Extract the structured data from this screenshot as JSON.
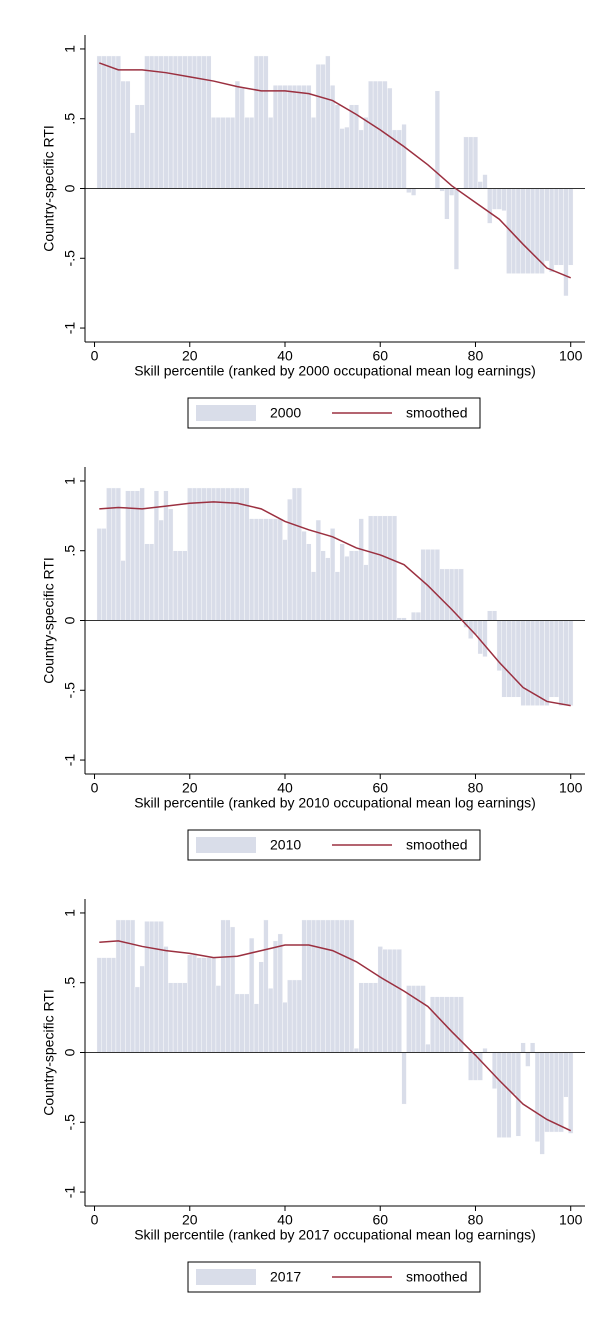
{
  "chart_data": [
    {
      "type": "bar",
      "y_label": "Country-specific RTI",
      "x_label": "Skill percentile (ranked by 2000 occupational mean log earnings)",
      "xlim": [
        -2,
        103
      ],
      "xticks": [
        0,
        20,
        40,
        60,
        80,
        100
      ],
      "ylim": [
        -1.1,
        1.1
      ],
      "yticks": [
        -1,
        {
          "value": -0.5,
          "label": "-.5"
        },
        0,
        {
          "value": 0.5,
          "label": ".5"
        },
        1
      ],
      "grid": false,
      "legend": "bottom",
      "series": [
        {
          "name": "2000",
          "type": "bar",
          "color": "#d9dde9",
          "x": [
            1,
            2,
            3,
            4,
            5,
            6,
            7,
            8,
            9,
            10,
            11,
            12,
            13,
            14,
            15,
            16,
            17,
            18,
            19,
            20,
            21,
            22,
            23,
            24,
            25,
            26,
            27,
            28,
            29,
            30,
            31,
            32,
            33,
            34,
            35,
            36,
            37,
            38,
            39,
            40,
            41,
            42,
            43,
            44,
            45,
            46,
            47,
            48,
            49,
            50,
            51,
            52,
            53,
            54,
            55,
            56,
            57,
            58,
            59,
            60,
            61,
            62,
            63,
            64,
            65,
            66,
            67,
            68,
            69,
            70,
            71,
            72,
            73,
            74,
            75,
            76,
            77,
            78,
            79,
            80,
            81,
            82,
            83,
            84,
            85,
            86,
            87,
            88,
            89,
            90,
            91,
            92,
            93,
            94,
            95,
            96,
            97,
            98,
            99,
            100
          ],
          "values": [
            0.95,
            0.95,
            0.95,
            0.95,
            0.95,
            0.77,
            0.77,
            0.4,
            0.6,
            0.6,
            0.95,
            0.95,
            0.95,
            0.95,
            0.95,
            0.95,
            0.95,
            0.95,
            0.95,
            0.95,
            0.95,
            0.95,
            0.95,
            0.95,
            0.51,
            0.51,
            0.51,
            0.51,
            0.51,
            0.77,
            0.72,
            0.51,
            0.51,
            0.95,
            0.95,
            0.95,
            0.51,
            0.74,
            0.74,
            0.74,
            0.74,
            0.74,
            0.74,
            0.74,
            0.74,
            0.51,
            0.89,
            0.89,
            0.95,
            0.74,
            0.6,
            0.43,
            0.44,
            0.6,
            0.6,
            0.42,
            0.51,
            0.77,
            0.77,
            0.77,
            0.77,
            0.72,
            0.42,
            0.42,
            0.46,
            -0.03,
            -0.05,
            0,
            0,
            0,
            0,
            0.7,
            -0.02,
            -0.22,
            -0.05,
            -0.58,
            0,
            0.37,
            0.37,
            0.37,
            0.05,
            0.1,
            -0.25,
            -0.15,
            -0.15,
            -0.16,
            -0.61,
            -0.61,
            -0.61,
            -0.61,
            -0.61,
            -0.61,
            -0.61,
            -0.61,
            -0.52,
            -0.6,
            -0.55,
            -0.55,
            -0.77,
            -0.55
          ]
        },
        {
          "name": "smoothed",
          "type": "line",
          "color": "#9b3040",
          "x": [
            1,
            5,
            10,
            15,
            20,
            25,
            30,
            35,
            40,
            45,
            50,
            55,
            60,
            65,
            70,
            75,
            80,
            85,
            90,
            95,
            100
          ],
          "values": [
            0.9,
            0.85,
            0.85,
            0.83,
            0.8,
            0.77,
            0.73,
            0.7,
            0.7,
            0.68,
            0.63,
            0.53,
            0.42,
            0.3,
            0.17,
            0.02,
            -0.1,
            -0.22,
            -0.4,
            -0.57,
            -0.64
          ]
        }
      ]
    },
    {
      "type": "bar",
      "y_label": "Country-specific RTI",
      "x_label": "Skill percentile (ranked by 2010 occupational mean log earnings)",
      "xlim": [
        -2,
        103
      ],
      "xticks": [
        0,
        20,
        40,
        60,
        80,
        100
      ],
      "ylim": [
        -1.1,
        1.1
      ],
      "yticks": [
        -1,
        {
          "value": -0.5,
          "label": "-.5"
        },
        0,
        {
          "value": 0.5,
          "label": ".5"
        },
        1
      ],
      "grid": false,
      "legend": "bottom",
      "series": [
        {
          "name": "2010",
          "type": "bar",
          "color": "#d9dde9",
          "x": [
            1,
            2,
            3,
            4,
            5,
            6,
            7,
            8,
            9,
            10,
            11,
            12,
            13,
            14,
            15,
            16,
            17,
            18,
            19,
            20,
            21,
            22,
            23,
            24,
            25,
            26,
            27,
            28,
            29,
            30,
            31,
            32,
            33,
            34,
            35,
            36,
            37,
            38,
            39,
            40,
            41,
            42,
            43,
            44,
            45,
            46,
            47,
            48,
            49,
            50,
            51,
            52,
            53,
            54,
            55,
            56,
            57,
            58,
            59,
            60,
            61,
            62,
            63,
            64,
            65,
            66,
            67,
            68,
            69,
            70,
            71,
            72,
            73,
            74,
            75,
            76,
            77,
            78,
            79,
            80,
            81,
            82,
            83,
            84,
            85,
            86,
            87,
            88,
            89,
            90,
            91,
            92,
            93,
            94,
            95,
            96,
            97,
            98,
            99,
            100
          ],
          "values": [
            0.66,
            0.66,
            0.95,
            0.95,
            0.95,
            0.43,
            0.93,
            0.93,
            0.93,
            0.95,
            0.55,
            0.55,
            0.93,
            0.72,
            0.93,
            0.8,
            0.5,
            0.5,
            0.5,
            0.95,
            0.95,
            0.95,
            0.95,
            0.95,
            0.95,
            0.95,
            0.95,
            0.95,
            0.95,
            0.95,
            0.95,
            0.95,
            0.73,
            0.73,
            0.73,
            0.73,
            0.73,
            0.73,
            0.73,
            0.58,
            0.87,
            0.95,
            0.95,
            0.64,
            0.55,
            0.35,
            0.72,
            0.5,
            0.45,
            0.66,
            0.35,
            0.55,
            0.46,
            0.5,
            0.5,
            0.73,
            0.4,
            0.75,
            0.75,
            0.75,
            0.75,
            0.75,
            0.75,
            0.02,
            0.02,
            0,
            0.06,
            0.06,
            0.51,
            0.51,
            0.51,
            0.51,
            0.37,
            0.37,
            0.37,
            0.37,
            0.37,
            -0.05,
            -0.13,
            -0.1,
            -0.24,
            -0.26,
            0.07,
            0.07,
            -0.36,
            -0.55,
            -0.55,
            -0.55,
            -0.55,
            -0.61,
            -0.61,
            -0.61,
            -0.61,
            -0.61,
            -0.61,
            -0.55,
            -0.55,
            -0.61,
            -0.61,
            -0.61
          ]
        },
        {
          "name": "smoothed",
          "type": "line",
          "color": "#9b3040",
          "x": [
            1,
            5,
            10,
            15,
            20,
            25,
            30,
            35,
            40,
            45,
            50,
            55,
            60,
            65,
            70,
            75,
            80,
            85,
            90,
            95,
            100
          ],
          "values": [
            0.8,
            0.81,
            0.8,
            0.82,
            0.84,
            0.85,
            0.84,
            0.8,
            0.71,
            0.65,
            0.6,
            0.52,
            0.47,
            0.4,
            0.25,
            0.08,
            -0.1,
            -0.3,
            -0.48,
            -0.58,
            -0.61
          ]
        }
      ]
    },
    {
      "type": "bar",
      "y_label": "Country-specific RTI",
      "x_label": "Skill percentile (ranked by 2017 occupational mean log earnings)",
      "xlim": [
        -2,
        103
      ],
      "xticks": [
        0,
        20,
        40,
        60,
        80,
        100
      ],
      "ylim": [
        -1.1,
        1.1
      ],
      "yticks": [
        -1,
        {
          "value": -0.5,
          "label": "-.5"
        },
        0,
        {
          "value": 0.5,
          "label": ".5"
        },
        1
      ],
      "grid": false,
      "legend": "bottom",
      "series": [
        {
          "name": "2017",
          "type": "bar",
          "color": "#d9dde9",
          "x": [
            1,
            2,
            3,
            4,
            5,
            6,
            7,
            8,
            9,
            10,
            11,
            12,
            13,
            14,
            15,
            16,
            17,
            18,
            19,
            20,
            21,
            22,
            23,
            24,
            25,
            26,
            27,
            28,
            29,
            30,
            31,
            32,
            33,
            34,
            35,
            36,
            37,
            38,
            39,
            40,
            41,
            42,
            43,
            44,
            45,
            46,
            47,
            48,
            49,
            50,
            51,
            52,
            53,
            54,
            55,
            56,
            57,
            58,
            59,
            60,
            61,
            62,
            63,
            64,
            65,
            66,
            67,
            68,
            69,
            70,
            71,
            72,
            73,
            74,
            75,
            76,
            77,
            78,
            79,
            80,
            81,
            82,
            83,
            84,
            85,
            86,
            87,
            88,
            89,
            90,
            91,
            92,
            93,
            94,
            95,
            96,
            97,
            98,
            99,
            100
          ],
          "values": [
            0.68,
            0.68,
            0.68,
            0.68,
            0.95,
            0.95,
            0.95,
            0.95,
            0.47,
            0.62,
            0.94,
            0.94,
            0.94,
            0.94,
            0.76,
            0.5,
            0.5,
            0.5,
            0.5,
            0.7,
            0.7,
            0.68,
            0.68,
            0.68,
            0.68,
            0.48,
            0.95,
            0.95,
            0.9,
            0.42,
            0.42,
            0.42,
            0.82,
            0.35,
            0.65,
            0.95,
            0.46,
            0.8,
            0.85,
            0.36,
            0.52,
            0.52,
            0.52,
            0.95,
            0.95,
            0.95,
            0.95,
            0.95,
            0.95,
            0.95,
            0.95,
            0.95,
            0.95,
            0.95,
            0.03,
            0.5,
            0.5,
            0.5,
            0.5,
            0.76,
            0.74,
            0.74,
            0.74,
            0.74,
            -0.37,
            0.48,
            0.48,
            0.48,
            0.48,
            0.06,
            0.4,
            0.4,
            0.4,
            0.4,
            0.4,
            0.4,
            0.4,
            0,
            -0.2,
            -0.2,
            -0.2,
            0.03,
            0,
            -0.26,
            -0.61,
            -0.61,
            -0.61,
            -0.3,
            -0.6,
            0.07,
            -0.1,
            0.07,
            -0.64,
            -0.73,
            -0.57,
            -0.57,
            -0.57,
            -0.57,
            -0.32,
            -0.58
          ]
        },
        {
          "name": "smoothed",
          "type": "line",
          "color": "#9b3040",
          "x": [
            1,
            5,
            10,
            15,
            20,
            25,
            30,
            35,
            40,
            45,
            50,
            55,
            60,
            65,
            70,
            75,
            80,
            85,
            90,
            95,
            100
          ],
          "values": [
            0.79,
            0.8,
            0.76,
            0.73,
            0.71,
            0.68,
            0.69,
            0.73,
            0.77,
            0.77,
            0.73,
            0.65,
            0.54,
            0.44,
            0.33,
            0.15,
            -0.02,
            -0.2,
            -0.37,
            -0.48,
            -0.56
          ]
        }
      ]
    }
  ]
}
